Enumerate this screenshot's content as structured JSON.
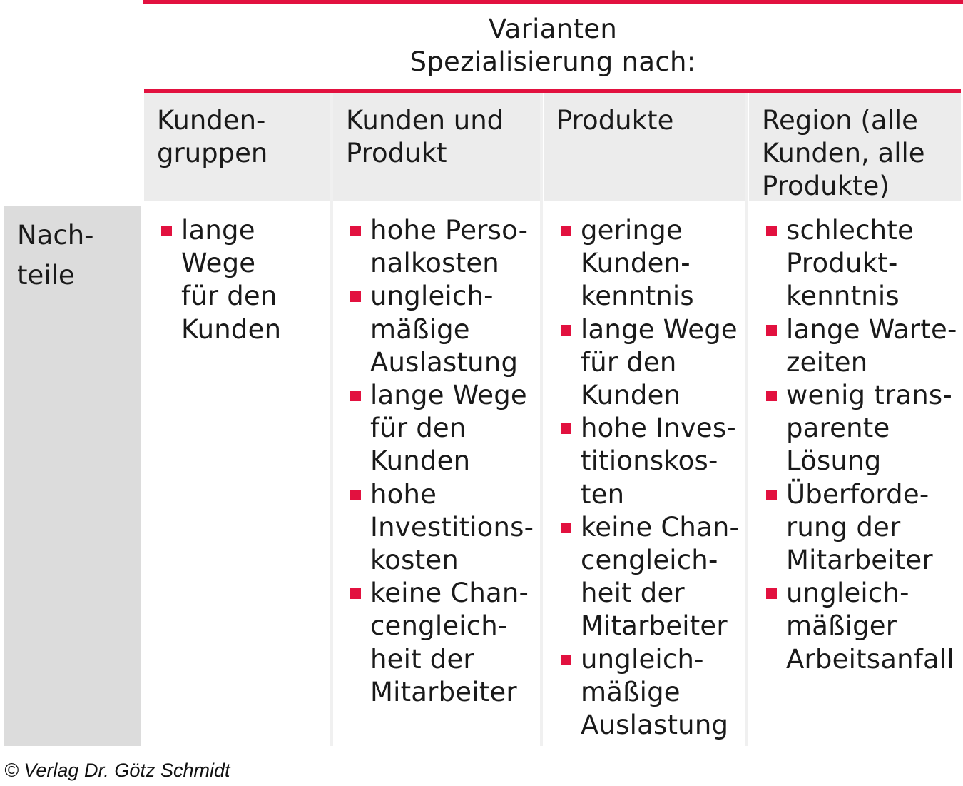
{
  "caption": {
    "line1": "Varianten",
    "line2": "Spezialisierung nach:"
  },
  "row_label": {
    "line1": "Nach-",
    "line2": "teile"
  },
  "columns": [
    {
      "header": [
        "Kunden-",
        "gruppen"
      ],
      "items": [
        [
          "lange",
          "Wege",
          "für den",
          "Kunden"
        ]
      ]
    },
    {
      "header": [
        "Kunden und",
        "Produkt"
      ],
      "items": [
        [
          "hohe Perso-",
          "nalkosten"
        ],
        [
          "ungleich-",
          "mäßige",
          "Auslastung"
        ],
        [
          "lange Wege",
          "für den",
          "Kunden"
        ],
        [
          "hohe",
          "Investitions-",
          "kosten"
        ],
        [
          "keine Chan-",
          "cengleich-",
          "heit der",
          "Mitarbeiter"
        ]
      ]
    },
    {
      "header": [
        "Produkte"
      ],
      "items": [
        [
          "geringe",
          "Kunden-",
          "kenntnis"
        ],
        [
          "lange Wege",
          "für den",
          "Kunden"
        ],
        [
          "hohe Inves-",
          "titionskos-",
          "ten"
        ],
        [
          "keine Chan-",
          "cengleich-",
          "heit der",
          "Mitarbeiter"
        ],
        [
          "ungleich-",
          "mäßige",
          "Auslastung"
        ]
      ]
    },
    {
      "header": [
        "Region (alle",
        "Kunden, alle",
        "Produkte)"
      ],
      "items": [
        [
          "schlechte",
          "Produkt-",
          "kenntnis"
        ],
        [
          "lange Warte-",
          "zeiten"
        ],
        [
          "wenig trans-",
          "parente",
          "Lösung"
        ],
        [
          "Überforde-",
          "rung der",
          "Mitarbeiter"
        ],
        [
          "ungleich-",
          "mäßiger",
          "Arbeitsanfall"
        ]
      ]
    }
  ],
  "copyright": "© Verlag Dr. Götz Schmidt",
  "colors": {
    "accent": "#e2113f",
    "header_bg": "#ececec",
    "label_bg": "#dcdcdc"
  }
}
